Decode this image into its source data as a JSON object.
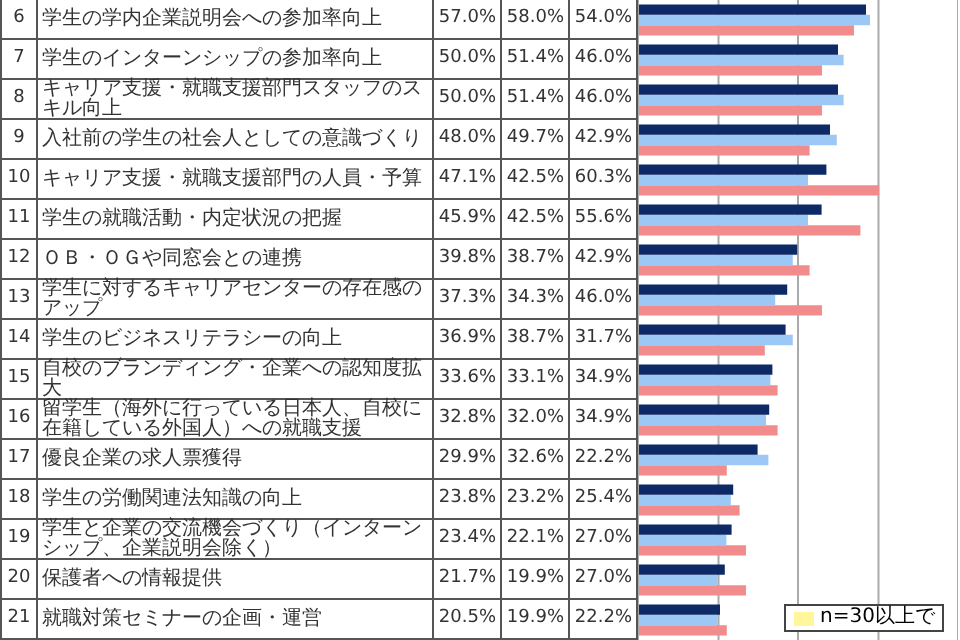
{
  "chart_data": {
    "type": "bar",
    "orientation": "horizontal",
    "categories": [
      "学生の学内企業説明会への参加率向上",
      "学生のインターンシップの参加率向上",
      "キャリア支援・就職支援部門スタッフのスキル向上",
      "入社前の学生の社会人としての意識づくり",
      "キャリア支援・就職支援部門の人員・予算",
      "学生の就職活動・内定状況の把握",
      "ＯＢ・ＯＧや同窓会との連携",
      "学生に対するキャリアセンターの存在感のアップ",
      "学生のビジネスリテラシーの向上",
      "自校のブランディング・企業への認知度拡大",
      "留学生（海外に行っている日本人、自校に在籍している外国人）への就職支援",
      "優良企業の求人票獲得",
      "学生の労働関連法知識の向上",
      "学生と企業の交流機会づくり（インターンシップ、企業説明会除く）",
      "保護者への情報提供",
      "就職対策セミナーの企画・運営"
    ],
    "series": [
      {
        "color": "#0d2a66",
        "values": [
          57.0,
          50.0,
          50.0,
          48.0,
          47.1,
          45.9,
          39.8,
          37.3,
          36.9,
          33.6,
          32.8,
          29.9,
          23.8,
          23.4,
          21.7,
          20.5
        ],
        "value_labels": [
          "57.0%",
          "50.0%",
          "50.0%",
          "48.0%",
          "47.1%",
          "45.9%",
          "39.8%",
          "37.3%",
          "36.9%",
          "33.6%",
          "32.8%",
          "29.9%",
          "23.8%",
          "23.4%",
          "21.7%",
          "20.5%"
        ]
      },
      {
        "color": "#9cc8f5",
        "values": [
          58.0,
          51.4,
          51.4,
          49.7,
          42.5,
          42.5,
          38.7,
          34.3,
          38.7,
          33.1,
          32.0,
          32.6,
          23.2,
          22.1,
          19.9,
          19.9
        ],
        "value_labels": [
          "58.0%",
          "51.4%",
          "51.4%",
          "49.7%",
          "42.5%",
          "42.5%",
          "38.7%",
          "34.3%",
          "38.7%",
          "33.1%",
          "32.0%",
          "32.6%",
          "23.2%",
          "22.1%",
          "19.9%",
          "19.9%"
        ]
      },
      {
        "color": "#f28b8b",
        "values": [
          54.0,
          46.0,
          46.0,
          42.9,
          60.3,
          55.6,
          42.9,
          46.0,
          31.7,
          34.9,
          34.9,
          22.2,
          25.4,
          27.0,
          27.0,
          22.2
        ],
        "value_labels": [
          "54.0%",
          "46.0%",
          "46.0%",
          "42.9%",
          "60.3%",
          "55.6%",
          "42.9%",
          "46.0%",
          "31.7%",
          "34.9%",
          "34.9%",
          "22.2%",
          "25.4%",
          "27.0%",
          "27.0%",
          "22.2%"
        ]
      }
    ],
    "xlim": [
      0,
      80
    ],
    "xticks": [
      {
        "value": 0,
        "label": null
      },
      {
        "value": 20,
        "label": null
      },
      {
        "value": 40,
        "label": null
      },
      {
        "value": 60,
        "label": null
      },
      {
        "value": 80,
        "label": null
      }
    ],
    "grid": "x",
    "legend": false,
    "annotations": [
      "6",
      "7",
      "8",
      "9",
      "10",
      "11",
      "12",
      "13",
      "14",
      "15",
      "16",
      "17",
      "18",
      "19",
      "20",
      "21",
      "n=30以上で"
    ]
  }
}
